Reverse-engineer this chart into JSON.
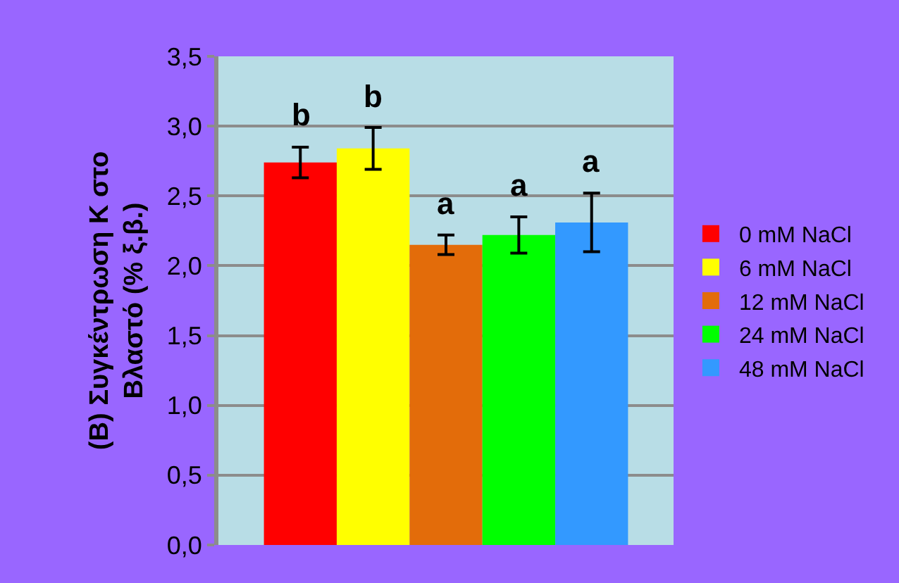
{
  "chart_data": {
    "type": "bar",
    "ylabel": "(Β) Συγκέντρωση Κ στο\nΒλαστό (% ξ.β.)",
    "categories": [
      null
    ],
    "series": [
      {
        "name": "0 mM NaCl",
        "color": "#ff0000",
        "values": [
          2.74
        ],
        "errors": [
          0.11
        ]
      },
      {
        "name": "6 mM NaCl",
        "color": "#ffff00",
        "values": [
          2.84
        ],
        "errors": [
          0.15
        ]
      },
      {
        "name": "12 mM NaCl",
        "color": "#e36c0a",
        "values": [
          2.15
        ],
        "errors": [
          0.07
        ]
      },
      {
        "name": "24 mM NaCl",
        "color": "#00ff00",
        "values": [
          2.22
        ],
        "errors": [
          0.13
        ]
      },
      {
        "name": "48 mM NaCl",
        "color": "#3399ff",
        "values": [
          2.31
        ],
        "errors": [
          0.21
        ]
      }
    ],
    "annotations": [
      "b",
      "b",
      "a",
      "a",
      "a"
    ],
    "ylim": [
      0,
      3.5
    ],
    "yticks": [
      {
        "value": 0,
        "label": "0,0"
      },
      {
        "value": 0.5,
        "label": "0,5"
      },
      {
        "value": 1,
        "label": "1,0"
      },
      {
        "value": 1.5,
        "label": "1,5"
      },
      {
        "value": 2,
        "label": "2,0"
      },
      {
        "value": 2.5,
        "label": "2,5"
      },
      {
        "value": 3,
        "label": "3,0"
      },
      {
        "value": 3.5,
        "label": "3,5"
      }
    ],
    "grid": "y",
    "legend": "right"
  }
}
